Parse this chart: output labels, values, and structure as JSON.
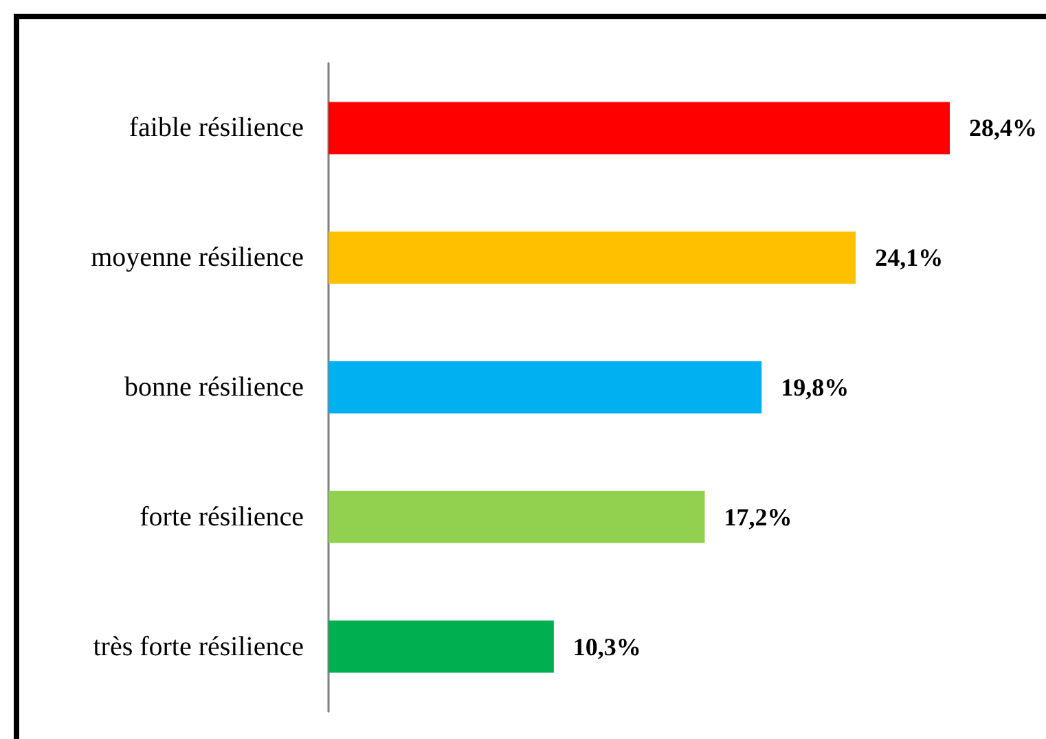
{
  "chart_data": {
    "type": "bar",
    "orientation": "horizontal",
    "categories": [
      "faible résilience",
      "moyenne résilience",
      "bonne résilience",
      "forte résilience",
      "très forte résilience"
    ],
    "values": [
      28.4,
      24.1,
      19.8,
      17.2,
      10.3
    ],
    "colors": [
      "#ff0000",
      "#ffc000",
      "#00b0f0",
      "#92d050",
      "#00b050"
    ],
    "value_labels": [
      "28,4%",
      "24,1%",
      "19,8%",
      "17,2%",
      "10,3%"
    ]
  }
}
